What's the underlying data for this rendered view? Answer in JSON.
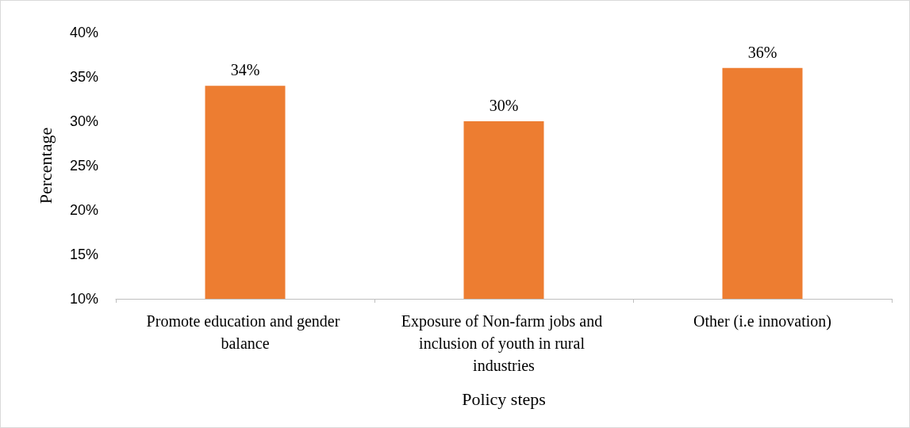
{
  "chart_data": {
    "type": "bar",
    "xlabel": "Policy steps",
    "ylabel": "Percentage",
    "categories": [
      "Promote education and gender balance",
      "Exposure of Non-farm jobs and inclusion of youth in rural industries",
      "Other (i.e innovation)"
    ],
    "values": [
      34,
      30,
      36
    ],
    "color": "#ed7d31",
    "value_labels": [
      "34%",
      "30%",
      "36%"
    ],
    "ylim": [
      10,
      40
    ],
    "yticks": [
      {
        "value": 10,
        "label": "10%"
      },
      {
        "value": 15,
        "label": "15%"
      },
      {
        "value": 20,
        "label": "20%"
      },
      {
        "value": 25,
        "label": "25%"
      },
      {
        "value": 30,
        "label": "30%"
      },
      {
        "value": 35,
        "label": "35%"
      },
      {
        "value": 40,
        "label": "40%"
      }
    ],
    "grid": false
  }
}
